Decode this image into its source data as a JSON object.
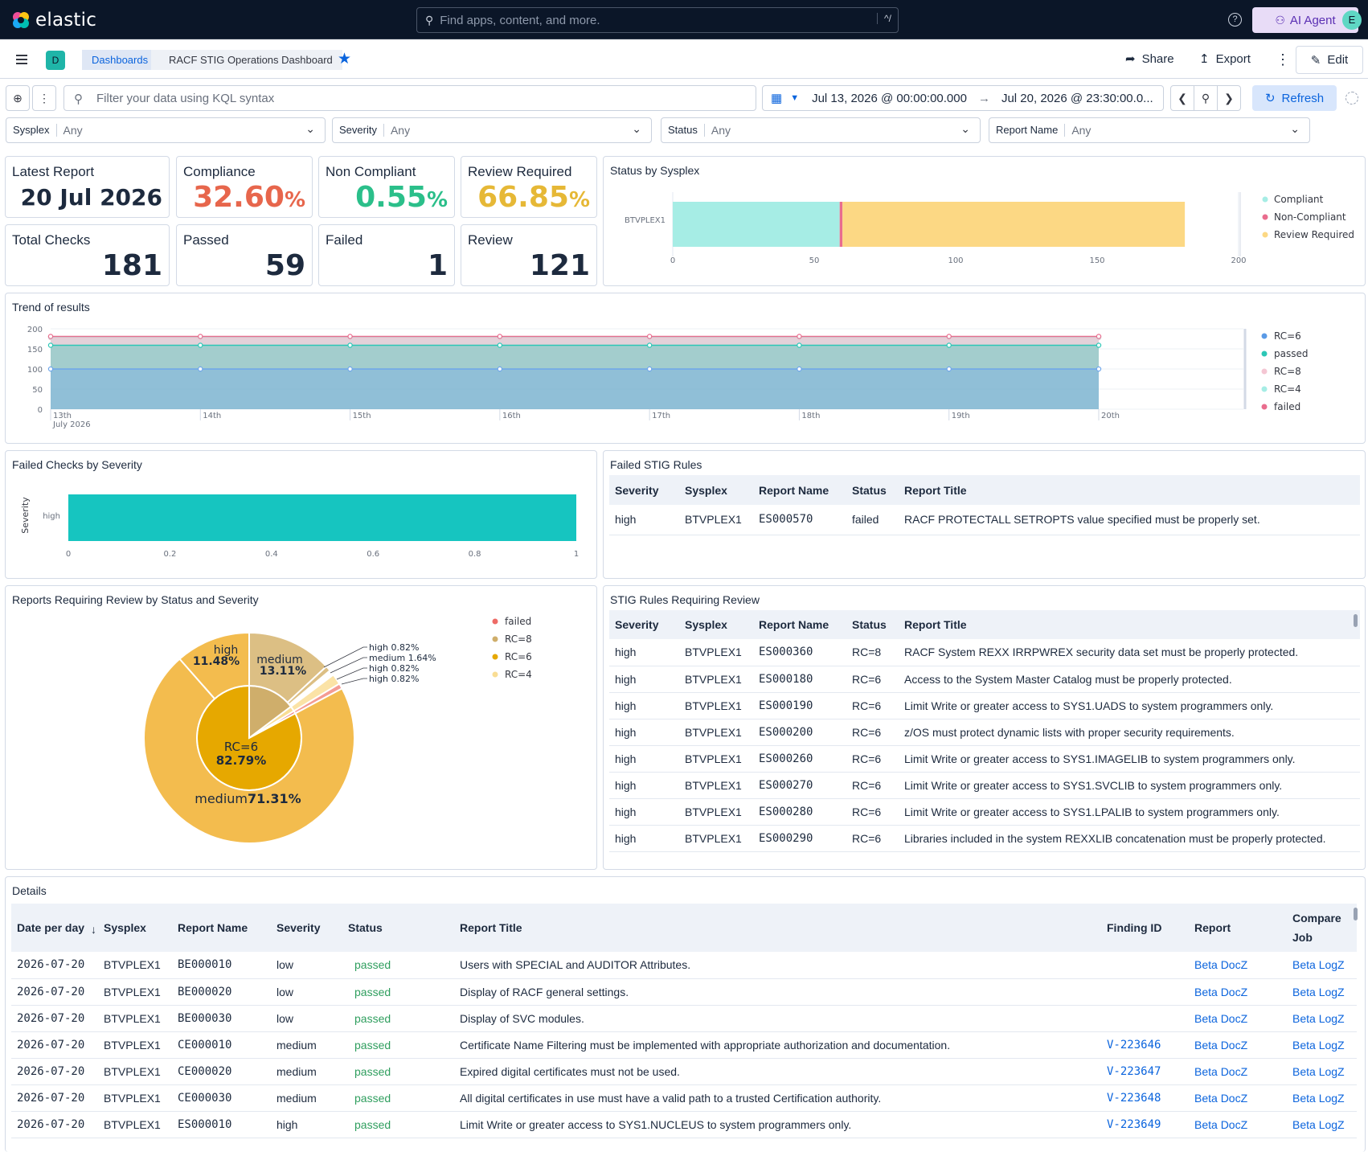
{
  "app": {
    "logo_text": "elastic",
    "search_placeholder": "Find apps, content, and more.",
    "search_shortcut": "^/",
    "ai_agent_label": "AI Agent",
    "avatar_initial": "E",
    "help_glyph": "?"
  },
  "nav": {
    "space_initial": "D",
    "breadcrumb_root": "Dashboards",
    "breadcrumb_current": "RACF STIG Operations Dashboard",
    "share_label": "Share",
    "export_label": "Export",
    "edit_label": "Edit"
  },
  "query": {
    "kql_placeholder": "Filter your data using KQL syntax",
    "date_start": "Jul 13, 2026 @ 00:00:00.000",
    "date_end": "Jul 20, 2026 @ 23:30:00.0...",
    "refresh_label": "Refresh"
  },
  "filters": [
    {
      "label": "Sysplex",
      "value": "Any"
    },
    {
      "label": "Severity",
      "value": "Any"
    },
    {
      "label": "Status",
      "value": "Any"
    },
    {
      "label": "Report Name",
      "value": "Any"
    }
  ],
  "metrics": {
    "latest_report": {
      "label": "Latest Report",
      "value": "20 Jul 2026"
    },
    "compliance": {
      "label": "Compliance",
      "value": "32.60",
      "unit": "%",
      "color": "#e7664c"
    },
    "non_compliant": {
      "label": "Non Compliant",
      "value": "0.55",
      "unit": "%",
      "color": "#2bbf8a"
    },
    "review_required": {
      "label": "Review Required",
      "value": "66.85",
      "unit": "%",
      "color": "#e6b836"
    },
    "total_checks": {
      "label": "Total Checks",
      "value": "181"
    },
    "passed": {
      "label": "Passed",
      "value": "59"
    },
    "failed": {
      "label": "Failed",
      "value": "1"
    },
    "review": {
      "label": "Review",
      "value": "121"
    }
  },
  "status_by_sysplex": {
    "title": "Status by Sysplex",
    "chart_data": {
      "type": "bar",
      "orientation": "horizontal",
      "stacked": true,
      "categories": [
        "BTVPLEX1"
      ],
      "series": [
        {
          "name": "Compliant",
          "values": [
            59
          ],
          "color": "#a6ede5"
        },
        {
          "name": "Non-Compliant",
          "values": [
            1
          ],
          "color": "#e96d8e"
        },
        {
          "name": "Review Required",
          "values": [
            121
          ],
          "color": "#fcd884"
        }
      ],
      "xlim": [
        0,
        200
      ],
      "xticks": [
        "0",
        "50",
        "100",
        "150",
        "200"
      ],
      "legend": "right"
    }
  },
  "trend": {
    "title": "Trend of results",
    "chart_data": {
      "type": "area",
      "x": [
        "13th",
        "14th",
        "15th",
        "16th",
        "17th",
        "18th",
        "19th",
        "20th"
      ],
      "x_sublabel": "July 2026",
      "ylim": [
        0,
        200
      ],
      "yticks": [
        "0",
        "50",
        "100",
        "150",
        "200"
      ],
      "series": [
        {
          "name": "RC=6",
          "values": [
            100,
            100,
            100,
            100,
            100,
            100,
            100,
            100
          ],
          "color": "#6ea6ea"
        },
        {
          "name": "passed",
          "values": [
            159,
            159,
            159,
            159,
            159,
            159,
            159,
            159
          ],
          "color": "#2cc7b6"
        },
        {
          "name": "RC=8",
          "values": [
            178,
            178,
            178,
            178,
            178,
            178,
            178,
            178
          ],
          "color": "#f4c6d3"
        },
        {
          "name": "RC=4",
          "values": [
            180,
            180,
            180,
            180,
            180,
            180,
            180,
            180
          ],
          "color": "#a6ede5"
        },
        {
          "name": "failed",
          "values": [
            181,
            181,
            181,
            181,
            181,
            181,
            181,
            181
          ],
          "color": "#e96d8e"
        }
      ],
      "legend": "right"
    }
  },
  "failed_by_severity": {
    "title": "Failed Checks by Severity",
    "chart_data": {
      "type": "bar",
      "orientation": "horizontal",
      "categories": [
        "high"
      ],
      "values": [
        1
      ],
      "ylabel": "Severity",
      "xlim": [
        0,
        1
      ],
      "xticks": [
        "0",
        "0.2",
        "0.4",
        "0.6",
        "0.8",
        "1"
      ],
      "color": "#16c5c0"
    }
  },
  "failed_rules": {
    "title": "Failed STIG Rules",
    "columns": [
      "Severity",
      "Sysplex",
      "Report Name",
      "Status",
      "Report Title"
    ],
    "rows": [
      [
        "high",
        "BTVPLEX1",
        "ES000570",
        "failed",
        "RACF PROTECTALL SETROPTS value specified must be properly set."
      ]
    ]
  },
  "review_pie": {
    "title": "Reports Requiring Review by Status and Severity",
    "chart_data": {
      "type": "pie",
      "inner": [
        {
          "name": "RC=6",
          "value": 82.79,
          "label": "RC=6",
          "pct": "82.79%",
          "color": "#e6a800"
        },
        {
          "name": "RC=8",
          "value": 14.75,
          "color": "#cfae6b"
        },
        {
          "name": "RC=4",
          "value": 1.64,
          "color": "#f9dd94"
        },
        {
          "name": "failed",
          "value": 0.82,
          "color": "#ee7a72"
        }
      ],
      "outer": [
        {
          "parent": "RC=6",
          "label": "medium",
          "pct": "71.31%",
          "value": 71.31,
          "color": "#f3bc4e"
        },
        {
          "parent": "RC=6",
          "label": "high",
          "pct": "11.48%",
          "value": 11.48,
          "color": "#f3bc4e"
        },
        {
          "parent": "RC=8",
          "label": "medium",
          "pct": "13.11%",
          "value": 13.11,
          "color": "#dcbf84"
        },
        {
          "parent": "RC=8",
          "label": "high",
          "pct": "0.82%",
          "value": 0.82,
          "color": "#dcbf84"
        },
        {
          "parent": "RC=4",
          "label": "medium",
          "pct": "1.64%",
          "value": 1.64,
          "color": "#fbe3a6"
        },
        {
          "parent": "failed",
          "label": "high",
          "pct": "0.82%",
          "value": 0.82,
          "color": "#f49b93"
        }
      ],
      "legend": [
        {
          "name": "failed",
          "color": "#ee6b66"
        },
        {
          "name": "RC=8",
          "color": "#cfae6b"
        },
        {
          "name": "RC=6",
          "color": "#e6a800"
        },
        {
          "name": "RC=4",
          "color": "#f9dd94"
        }
      ]
    }
  },
  "review_rules": {
    "title": "STIG Rules Requiring Review",
    "columns": [
      "Severity",
      "Sysplex",
      "Report Name",
      "Status",
      "Report Title"
    ],
    "rows": [
      [
        "high",
        "BTVPLEX1",
        "ES000360",
        "RC=8",
        "RACF System REXX IRRPWREX security data set must be properly protected."
      ],
      [
        "high",
        "BTVPLEX1",
        "ES000180",
        "RC=6",
        "Access to the System Master Catalog must be properly protected."
      ],
      [
        "high",
        "BTVPLEX1",
        "ES000190",
        "RC=6",
        "Limit Write or greater access to SYS1.UADS to system programmers only."
      ],
      [
        "high",
        "BTVPLEX1",
        "ES000200",
        "RC=6",
        "z/OS must protect dynamic lists with proper security requirements."
      ],
      [
        "high",
        "BTVPLEX1",
        "ES000260",
        "RC=6",
        "Limit Write or greater access to SYS1.IMAGELIB to system programmers only."
      ],
      [
        "high",
        "BTVPLEX1",
        "ES000270",
        "RC=6",
        "Limit Write or greater access to SYS1.SVCLIB to system programmers only."
      ],
      [
        "high",
        "BTVPLEX1",
        "ES000280",
        "RC=6",
        "Limit Write or greater access to SYS1.LPALIB to system programmers only."
      ],
      [
        "high",
        "BTVPLEX1",
        "ES000290",
        "RC=6",
        "Libraries included in the system REXXLIB concatenation must be properly protected."
      ]
    ]
  },
  "details": {
    "title": "Details",
    "columns": [
      "Date per day",
      "Sysplex",
      "Report Name",
      "Severity",
      "Status",
      "Report Title",
      "Finding ID",
      "Report",
      "Compare Job"
    ],
    "rows": [
      [
        "2026-07-20",
        "BTVPLEX1",
        "BE000010",
        "low",
        "passed",
        "Users with SPECIAL and AUDITOR Attributes.",
        "",
        "Beta DocZ",
        "Beta LogZ"
      ],
      [
        "2026-07-20",
        "BTVPLEX1",
        "BE000020",
        "low",
        "passed",
        "Display of RACF general settings.",
        "",
        "Beta DocZ",
        "Beta LogZ"
      ],
      [
        "2026-07-20",
        "BTVPLEX1",
        "BE000030",
        "low",
        "passed",
        "Display of SVC modules.",
        "",
        "Beta DocZ",
        "Beta LogZ"
      ],
      [
        "2026-07-20",
        "BTVPLEX1",
        "CE000010",
        "medium",
        "passed",
        "Certificate Name Filtering must be implemented with appropriate authorization and documentation.",
        "V-223646",
        "Beta DocZ",
        "Beta LogZ"
      ],
      [
        "2026-07-20",
        "BTVPLEX1",
        "CE000020",
        "medium",
        "passed",
        "Expired digital certificates must not be used.",
        "V-223647",
        "Beta DocZ",
        "Beta LogZ"
      ],
      [
        "2026-07-20",
        "BTVPLEX1",
        "CE000030",
        "medium",
        "passed",
        "All digital certificates in use must have a valid path to a trusted Certification authority.",
        "V-223648",
        "Beta DocZ",
        "Beta LogZ"
      ],
      [
        "2026-07-20",
        "BTVPLEX1",
        "ES000010",
        "high",
        "passed",
        "Limit Write or greater access to SYS1.NUCLEUS to system programmers only.",
        "V-223649",
        "Beta DocZ",
        "Beta LogZ"
      ]
    ]
  }
}
